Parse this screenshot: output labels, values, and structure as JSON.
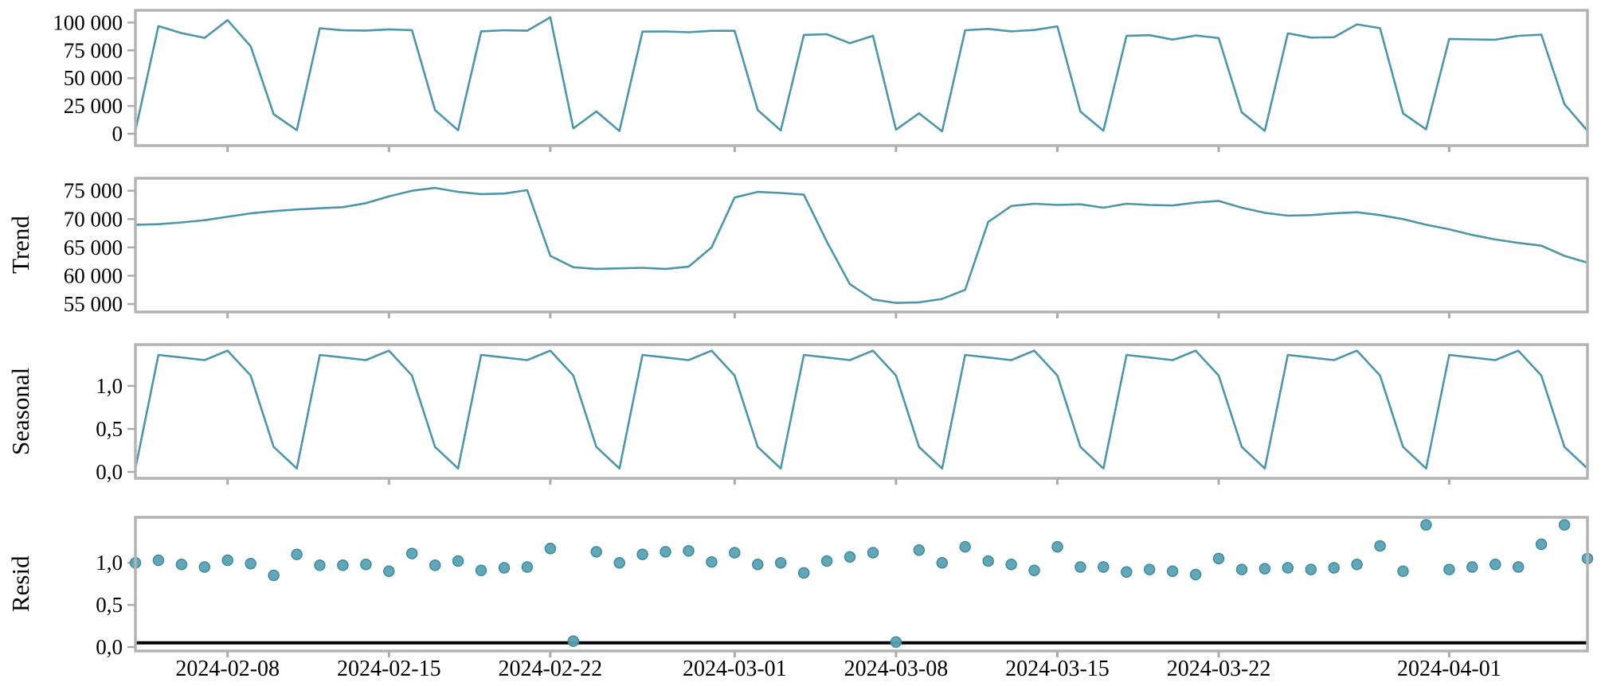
{
  "chart_data": {
    "type": "line",
    "title": "",
    "description": "Seasonal decomposition plot with four stacked panels sharing a date x-axis: observed, Trend, Seasonal, Resid",
    "legend": "none",
    "grid": false,
    "x": {
      "dates": [
        "2024-02-04",
        "2024-02-05",
        "2024-02-06",
        "2024-02-07",
        "2024-02-08",
        "2024-02-09",
        "2024-02-10",
        "2024-02-11",
        "2024-02-12",
        "2024-02-13",
        "2024-02-14",
        "2024-02-15",
        "2024-02-16",
        "2024-02-17",
        "2024-02-18",
        "2024-02-19",
        "2024-02-20",
        "2024-02-21",
        "2024-02-22",
        "2024-02-23",
        "2024-02-24",
        "2024-02-25",
        "2024-02-26",
        "2024-02-27",
        "2024-02-28",
        "2024-02-29",
        "2024-03-01",
        "2024-03-02",
        "2024-03-03",
        "2024-03-04",
        "2024-03-05",
        "2024-03-06",
        "2024-03-07",
        "2024-03-08",
        "2024-03-09",
        "2024-03-10",
        "2024-03-11",
        "2024-03-12",
        "2024-03-13",
        "2024-03-14",
        "2024-03-15",
        "2024-03-16",
        "2024-03-17",
        "2024-03-18",
        "2024-03-19",
        "2024-03-20",
        "2024-03-21",
        "2024-03-22",
        "2024-03-23",
        "2024-03-24",
        "2024-03-25",
        "2024-03-26",
        "2024-03-27",
        "2024-03-28",
        "2024-03-29",
        "2024-03-30",
        "2024-03-31",
        "2024-04-01",
        "2024-04-02",
        "2024-04-03",
        "2024-04-04",
        "2024-04-05",
        "2024-04-06",
        "2024-04-07"
      ],
      "tick_labels": [
        "2024-02-08",
        "2024-02-15",
        "2024-02-22",
        "2024-03-01",
        "2024-03-08",
        "2024-03-15",
        "2024-03-22",
        "2024-04-01"
      ],
      "tick_indices": [
        4,
        11,
        18,
        26,
        33,
        40,
        47,
        57
      ]
    },
    "series": {
      "observed": [
        2800,
        96800,
        90500,
        86200,
        102200,
        78700,
        17600,
        3200,
        94900,
        93000,
        92800,
        93900,
        93200,
        21200,
        3100,
        92100,
        93100,
        92700,
        104700,
        4800,
        20100,
        2500,
        91900,
        92000,
        91300,
        92600,
        92600,
        21300,
        3000,
        88900,
        89500,
        81400,
        88100,
        3700,
        18400,
        2200,
        93100,
        94300,
        92100,
        93300,
        96600,
        20000,
        2700,
        88000,
        88700,
        84700,
        88400,
        86100,
        19200,
        2600,
        90300,
        86500,
        86800,
        98400,
        95000,
        18300,
        4000,
        85300,
        84900,
        84600,
        88100,
        89200,
        26700,
        2600
      ],
      "trend": [
        69000,
        69100,
        69400,
        69800,
        70400,
        71000,
        71400,
        71700,
        71900,
        72100,
        72800,
        74000,
        75000,
        75500,
        74800,
        74400,
        74500,
        75100,
        63500,
        61500,
        61200,
        61300,
        61400,
        61200,
        61600,
        65000,
        73800,
        74800,
        74600,
        74300,
        66000,
        58500,
        55800,
        55200,
        55300,
        55900,
        57500,
        69500,
        72300,
        72700,
        72500,
        72600,
        72000,
        72700,
        72500,
        72400,
        72900,
        73200,
        72000,
        71100,
        70600,
        70700,
        71000,
        71200,
        70700,
        70000,
        69000,
        68200,
        67200,
        66400,
        65800,
        65300,
        63500,
        62300
      ],
      "seasonal": [
        0.04,
        1.36,
        1.33,
        1.3,
        1.41,
        1.12,
        0.29,
        0.04,
        1.36,
        1.33,
        1.3,
        1.41,
        1.12,
        0.29,
        0.04,
        1.36,
        1.33,
        1.3,
        1.41,
        1.12,
        0.29,
        0.04,
        1.36,
        1.33,
        1.3,
        1.41,
        1.12,
        0.29,
        0.04,
        1.36,
        1.33,
        1.3,
        1.41,
        1.12,
        0.29,
        0.04,
        1.36,
        1.33,
        1.3,
        1.41,
        1.12,
        0.29,
        0.04,
        1.36,
        1.33,
        1.3,
        1.41,
        1.12,
        0.29,
        0.04,
        1.36,
        1.33,
        1.3,
        1.41,
        1.12,
        0.29,
        0.04,
        1.36,
        1.33,
        1.3,
        1.41,
        1.12,
        0.29,
        0.04
      ],
      "resid": [
        1.0,
        1.03,
        0.98,
        0.95,
        1.03,
        0.99,
        0.85,
        1.1,
        0.97,
        0.97,
        0.98,
        0.9,
        1.11,
        0.97,
        1.02,
        0.91,
        0.94,
        0.95,
        1.17,
        0.07,
        1.13,
        1.0,
        1.1,
        1.13,
        1.14,
        1.01,
        1.12,
        0.98,
        1.0,
        0.88,
        1.02,
        1.07,
        1.12,
        0.06,
        1.15,
        1.0,
        1.19,
        1.02,
        0.98,
        0.91,
        1.19,
        0.95,
        0.95,
        0.89,
        0.92,
        0.9,
        0.86,
        1.05,
        0.92,
        0.93,
        0.94,
        0.92,
        0.94,
        0.98,
        1.2,
        0.9,
        1.45,
        0.92,
        0.95,
        0.98,
        0.95,
        1.22,
        1.45,
        1.05
      ]
    },
    "panels": [
      {
        "ylabel": "",
        "series": "observed",
        "kind": "line",
        "ylim": [
          -10700,
          111000
        ],
        "ytick_values": [
          0,
          25000,
          50000,
          75000,
          100000
        ],
        "ytick_labels": [
          "0",
          "25 000",
          "50 000",
          "75 000",
          "100 000"
        ]
      },
      {
        "ylabel": "Trend",
        "series": "trend",
        "kind": "line",
        "ylim": [
          53600,
          77200
        ],
        "ytick_values": [
          55000,
          60000,
          65000,
          70000,
          75000
        ],
        "ytick_labels": [
          "55 000",
          "60 000",
          "65 000",
          "70 000",
          "75 000"
        ]
      },
      {
        "ylabel": "Seasonal",
        "series": "seasonal",
        "kind": "line",
        "ylim": [
          -0.074,
          1.48
        ],
        "ytick_values": [
          0,
          0.5,
          1.0
        ],
        "ytick_labels": [
          "0,0",
          "0,5",
          "1,0"
        ]
      },
      {
        "ylabel": "Resid",
        "series": "resid",
        "kind": "scatter",
        "ylim": [
          -0.047,
          1.54
        ],
        "ytick_values": [
          0,
          0.5,
          1.0
        ],
        "ytick_labels": [
          "0,0",
          "0,5",
          "1,0"
        ],
        "hline": 0.05
      }
    ],
    "colors": {
      "line": "#4d96a9",
      "dot_fill": "#5aa2b3",
      "dot_stroke": "#3f8ba0",
      "spine": "#b3b3b3",
      "tick": "#ababab",
      "hline": "#000000",
      "text": "#000000"
    }
  }
}
